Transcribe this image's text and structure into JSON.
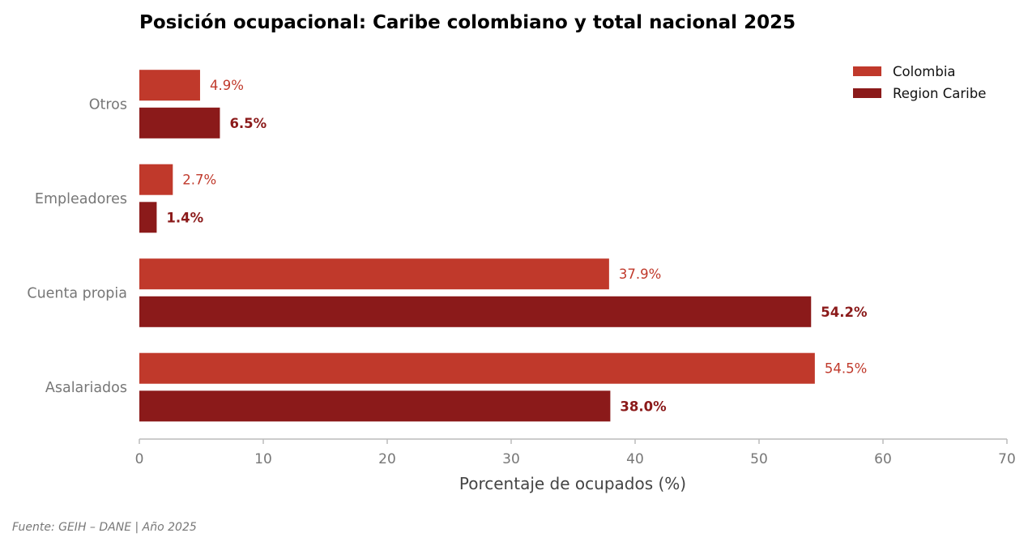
{
  "chart_data": {
    "type": "bar",
    "orientation": "horizontal",
    "title": "Posición ocupacional: Caribe colombiano y total nacional 2025",
    "xlabel": "Porcentaje de ocupados (%)",
    "ylabel": "",
    "xlim": [
      0,
      70
    ],
    "xticks": [
      0,
      10,
      20,
      30,
      40,
      50,
      60,
      70
    ],
    "categories": [
      "Otros",
      "Empleadores",
      "Cuenta propia",
      "Asalariados"
    ],
    "series": [
      {
        "name": "Colombia",
        "color": "#c0392b",
        "values": [
          4.9,
          2.7,
          37.9,
          54.5
        ],
        "labels": [
          "4.9%",
          "2.7%",
          "37.9%",
          "54.5%"
        ]
      },
      {
        "name": "Region Caribe",
        "color": "#8b1a1a",
        "values": [
          6.5,
          1.4,
          54.2,
          38.0
        ],
        "labels": [
          "6.5%",
          "1.4%",
          "54.2%",
          "38.0%"
        ]
      }
    ],
    "legend_position": "top-right",
    "grid": false,
    "source_note": "Fuente: GEIH – DANE  |  Año 2025"
  }
}
